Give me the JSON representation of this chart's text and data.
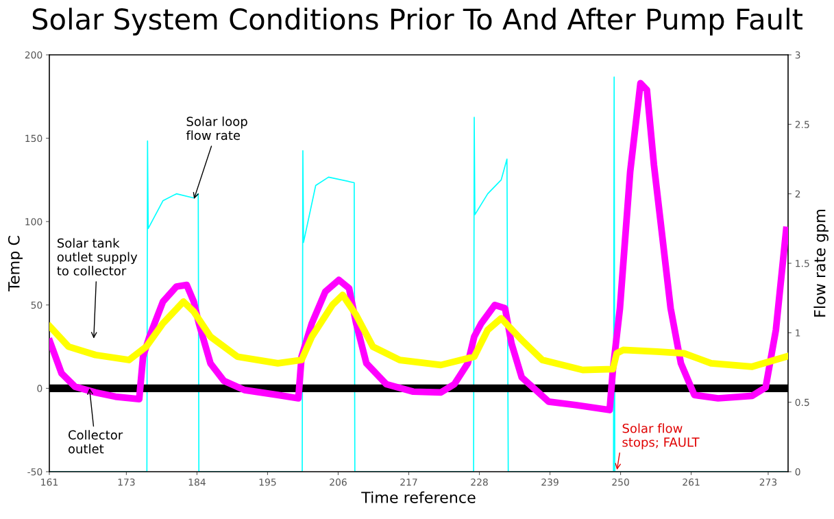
{
  "chart_data": {
    "type": "line",
    "title": "Solar System Conditions Prior To And After Pump Fault",
    "xlabel": "Time reference",
    "ylabel": "Temp C",
    "y2label": "Flow rate gpm",
    "xlim": [
      161,
      276.1
    ],
    "xticks": [
      161,
      173,
      184,
      195,
      206,
      217,
      228,
      239,
      250,
      261,
      273
    ],
    "ylim": [
      -50,
      200
    ],
    "yticks": [
      -50,
      0,
      50,
      100,
      150,
      200
    ],
    "y2lim": [
      0,
      3
    ],
    "y2ticks": [
      0,
      0.5,
      1,
      1.5,
      2,
      2.5,
      3
    ],
    "grid": false,
    "series": [
      {
        "name": "Collector\noutlet",
        "color": "#ff00ff",
        "x": [
          161.1,
          162.9,
          165.0,
          168.2,
          171.3,
          175.0,
          175.6,
          176.6,
          178.7,
          180.8,
          182.4,
          183.5,
          184.3,
          186.1,
          188.2,
          191.4,
          196.6,
          199.8,
          200.3,
          201.9,
          204.0,
          206.1,
          207.7,
          208.8,
          210.4,
          213.5,
          217.7,
          222.0,
          224.1,
          226.2,
          227.2,
          228.3,
          230.4,
          232.0,
          233.0,
          234.6,
          238.8,
          243.0,
          248.3,
          248.8,
          249.9,
          251.5,
          253.1,
          254.1,
          255.2,
          256.2,
          257.8,
          259.4,
          261.5,
          265.2,
          270.5,
          272.6,
          274.2,
          275.8
        ],
        "values": [
          28,
          9,
          1,
          -2.5,
          -5,
          -6.5,
          19,
          31,
          52,
          61,
          62,
          52,
          39,
          15,
          4.5,
          -1,
          -4,
          -6,
          19,
          39,
          58,
          65,
          60,
          39,
          15,
          2.5,
          -2,
          -2.5,
          2.5,
          15,
          31,
          39,
          50,
          48,
          27,
          6.6,
          -8,
          -10,
          -13,
          11,
          48,
          130,
          183,
          179,
          134,
          101,
          48,
          15,
          -4,
          -6,
          -4.5,
          0.5,
          35,
          95
        ]
      },
      {
        "name": "Solar tank\noutlet supply\nto collector",
        "color": "#ffff00",
        "x": [
          161.1,
          164.0,
          168.2,
          173.4,
          176.1,
          178.7,
          181.9,
          183.5,
          186.1,
          190.3,
          196.6,
          200.3,
          201.9,
          205.1,
          206.7,
          208.8,
          211.4,
          215.6,
          222.0,
          227.2,
          229.3,
          231.4,
          234.6,
          237.8,
          244.1,
          248.8,
          249.4,
          250.4,
          255.7,
          259.9,
          264.1,
          270.5,
          275.8
        ],
        "values": [
          37,
          25,
          20,
          17,
          25,
          39,
          52,
          46,
          31,
          19,
          15,
          17,
          31,
          50,
          56,
          44,
          25,
          17,
          14,
          19,
          35,
          42,
          29,
          17,
          11,
          11.5,
          21,
          23,
          22,
          21,
          15,
          13,
          19
        ]
      },
      {
        "name": "Solar loop\nflow rate",
        "color": "#00ffff",
        "axis": "y2",
        "x": [
          161.1,
          176.2,
          176.3,
          176.4,
          178.7,
          180.8,
          183.5,
          184.2,
          184.3,
          200.4,
          200.5,
          200.6,
          202.5,
          204.5,
          208.5,
          208.6,
          227.1,
          227.2,
          227.3,
          229.3,
          231.4,
          232.3,
          232.5,
          248.9,
          249.0,
          249.1,
          275.8
        ],
        "values": [
          0,
          0,
          2.38,
          1.75,
          1.95,
          2.0,
          1.97,
          2.0,
          0,
          0,
          2.31,
          1.65,
          2.06,
          2.12,
          2.08,
          0,
          0,
          2.55,
          1.85,
          2.0,
          2.1,
          2.25,
          0,
          0,
          2.84,
          0,
          0
        ]
      }
    ],
    "ref_lines": [
      {
        "axis": "y",
        "value": 0,
        "color": "#000000"
      }
    ],
    "annotations": [
      {
        "text": "Solar flow\nstops; FAULT",
        "x": 249.4,
        "y": -50
      }
    ]
  }
}
